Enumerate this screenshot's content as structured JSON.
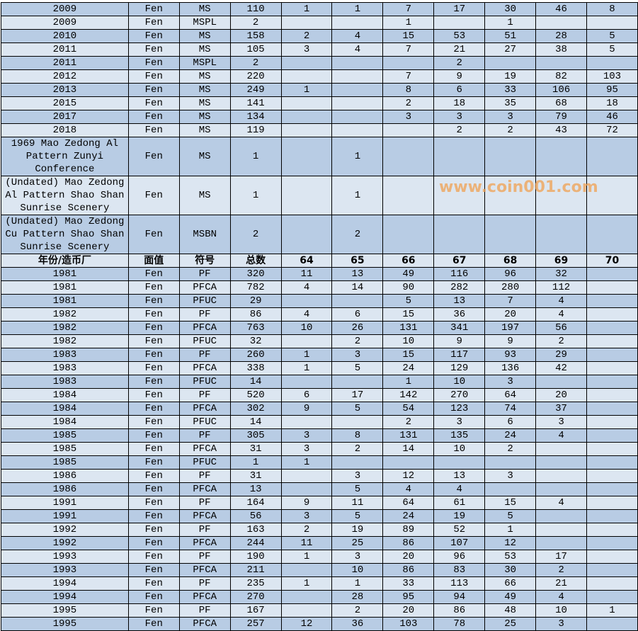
{
  "colors": {
    "row_dark": "#b8cce4",
    "row_light": "#dce6f1"
  },
  "watermark": "www.coin001.com",
  "rows": [
    {
      "cells": [
        "2009",
        "Fen",
        "MS",
        "110",
        "1",
        "1",
        "7",
        "17",
        "30",
        "46",
        "8"
      ]
    },
    {
      "cells": [
        "2009",
        "Fen",
        "MSPL",
        "2",
        "",
        "",
        "1",
        "",
        "1",
        "",
        ""
      ]
    },
    {
      "cells": [
        "2010",
        "Fen",
        "MS",
        "158",
        "2",
        "4",
        "15",
        "53",
        "51",
        "28",
        "5"
      ]
    },
    {
      "cells": [
        "2011",
        "Fen",
        "MS",
        "105",
        "3",
        "4",
        "7",
        "21",
        "27",
        "38",
        "5"
      ]
    },
    {
      "cells": [
        "2011",
        "Fen",
        "MSPL",
        "2",
        "",
        "",
        "",
        "2",
        "",
        "",
        ""
      ]
    },
    {
      "cells": [
        "2012",
        "Fen",
        "MS",
        "220",
        "",
        "",
        "7",
        "9",
        "19",
        "82",
        "103"
      ]
    },
    {
      "cells": [
        "2013",
        "Fen",
        "MS",
        "249",
        "1",
        "",
        "8",
        "6",
        "33",
        "106",
        "95"
      ]
    },
    {
      "cells": [
        "2015",
        "Fen",
        "MS",
        "141",
        "",
        "",
        "2",
        "18",
        "35",
        "68",
        "18"
      ]
    },
    {
      "cells": [
        "2017",
        "Fen",
        "MS",
        "134",
        "",
        "",
        "3",
        "3",
        "3",
        "79",
        "46"
      ]
    },
    {
      "cells": [
        "2018",
        "Fen",
        "MS",
        "119",
        "",
        "",
        "",
        "2",
        "2",
        "43",
        "72"
      ]
    },
    {
      "multi": true,
      "cells": [
        "1969 Mao Zedong Al Pattern Zunyi Conference",
        "Fen",
        "MS",
        "1",
        "",
        "1",
        "",
        "",
        "",
        "",
        ""
      ]
    },
    {
      "multi": true,
      "cells": [
        "(Undated) Mao Zedong Al Pattern Shao Shan Sunrise Scenery",
        "Fen",
        "MS",
        "1",
        "",
        "1",
        "",
        "",
        "",
        "",
        ""
      ]
    },
    {
      "multi": true,
      "cells": [
        "(Undated) Mao Zedong Cu Pattern Shao Shan Sunrise Scenery",
        "Fen",
        "MSBN",
        "2",
        "",
        "2",
        "",
        "",
        "",
        "",
        ""
      ]
    },
    {
      "header": true,
      "cells": [
        "年份/造币厂",
        "面值",
        "符号",
        "总数",
        "64",
        "65",
        "66",
        "67",
        "68",
        "69",
        "70"
      ]
    },
    {
      "cells": [
        "1981",
        "Fen",
        "PF",
        "320",
        "11",
        "13",
        "49",
        "116",
        "96",
        "32",
        ""
      ]
    },
    {
      "cells": [
        "1981",
        "Fen",
        "PFCA",
        "782",
        "4",
        "14",
        "90",
        "282",
        "280",
        "112",
        ""
      ]
    },
    {
      "cells": [
        "1981",
        "Fen",
        "PFUC",
        "29",
        "",
        "",
        "5",
        "13",
        "7",
        "4",
        ""
      ]
    },
    {
      "cells": [
        "1982",
        "Fen",
        "PF",
        "86",
        "4",
        "6",
        "15",
        "36",
        "20",
        "4",
        ""
      ]
    },
    {
      "cells": [
        "1982",
        "Fen",
        "PFCA",
        "763",
        "10",
        "26",
        "131",
        "341",
        "197",
        "56",
        ""
      ]
    },
    {
      "cells": [
        "1982",
        "Fen",
        "PFUC",
        "32",
        "",
        "2",
        "10",
        "9",
        "9",
        "2",
        ""
      ]
    },
    {
      "cells": [
        "1983",
        "Fen",
        "PF",
        "260",
        "1",
        "3",
        "15",
        "117",
        "93",
        "29",
        ""
      ]
    },
    {
      "cells": [
        "1983",
        "Fen",
        "PFCA",
        "338",
        "1",
        "5",
        "24",
        "129",
        "136",
        "42",
        ""
      ]
    },
    {
      "cells": [
        "1983",
        "Fen",
        "PFUC",
        "14",
        "",
        "",
        "1",
        "10",
        "3",
        "",
        ""
      ]
    },
    {
      "cells": [
        "1984",
        "Fen",
        "PF",
        "520",
        "6",
        "17",
        "142",
        "270",
        "64",
        "20",
        ""
      ]
    },
    {
      "cells": [
        "1984",
        "Fen",
        "PFCA",
        "302",
        "9",
        "5",
        "54",
        "123",
        "74",
        "37",
        ""
      ]
    },
    {
      "cells": [
        "1984",
        "Fen",
        "PFUC",
        "14",
        "",
        "",
        "2",
        "3",
        "6",
        "3",
        ""
      ]
    },
    {
      "cells": [
        "1985",
        "Fen",
        "PF",
        "305",
        "3",
        "8",
        "131",
        "135",
        "24",
        "4",
        ""
      ]
    },
    {
      "cells": [
        "1985",
        "Fen",
        "PFCA",
        "31",
        "3",
        "2",
        "14",
        "10",
        "2",
        "",
        ""
      ]
    },
    {
      "cells": [
        "1985",
        "Fen",
        "PFUC",
        "1",
        "1",
        "",
        "",
        "",
        "",
        "",
        ""
      ]
    },
    {
      "cells": [
        "1986",
        "Fen",
        "PF",
        "31",
        "",
        "3",
        "12",
        "13",
        "3",
        "",
        ""
      ]
    },
    {
      "cells": [
        "1986",
        "Fen",
        "PFCA",
        "13",
        "",
        "5",
        "4",
        "4",
        "",
        "",
        ""
      ]
    },
    {
      "cells": [
        "1991",
        "Fen",
        "PF",
        "164",
        "9",
        "11",
        "64",
        "61",
        "15",
        "4",
        ""
      ]
    },
    {
      "cells": [
        "1991",
        "Fen",
        "PFCA",
        "56",
        "3",
        "5",
        "24",
        "19",
        "5",
        "",
        ""
      ]
    },
    {
      "cells": [
        "1992",
        "Fen",
        "PF",
        "163",
        "2",
        "19",
        "89",
        "52",
        "1",
        "",
        ""
      ]
    },
    {
      "cells": [
        "1992",
        "Fen",
        "PFCA",
        "244",
        "11",
        "25",
        "86",
        "107",
        "12",
        "",
        ""
      ]
    },
    {
      "cells": [
        "1993",
        "Fen",
        "PF",
        "190",
        "1",
        "3",
        "20",
        "96",
        "53",
        "17",
        ""
      ]
    },
    {
      "cells": [
        "1993",
        "Fen",
        "PFCA",
        "211",
        "",
        "10",
        "86",
        "83",
        "30",
        "2",
        ""
      ]
    },
    {
      "cells": [
        "1994",
        "Fen",
        "PF",
        "235",
        "1",
        "1",
        "33",
        "113",
        "66",
        "21",
        ""
      ]
    },
    {
      "cells": [
        "1994",
        "Fen",
        "PFCA",
        "270",
        "",
        "28",
        "95",
        "94",
        "49",
        "4",
        ""
      ]
    },
    {
      "cells": [
        "1995",
        "Fen",
        "PF",
        "167",
        "",
        "2",
        "20",
        "86",
        "48",
        "10",
        "1"
      ]
    },
    {
      "cells": [
        "1995",
        "Fen",
        "PFCA",
        "257",
        "12",
        "36",
        "103",
        "78",
        "25",
        "3",
        ""
      ]
    }
  ]
}
